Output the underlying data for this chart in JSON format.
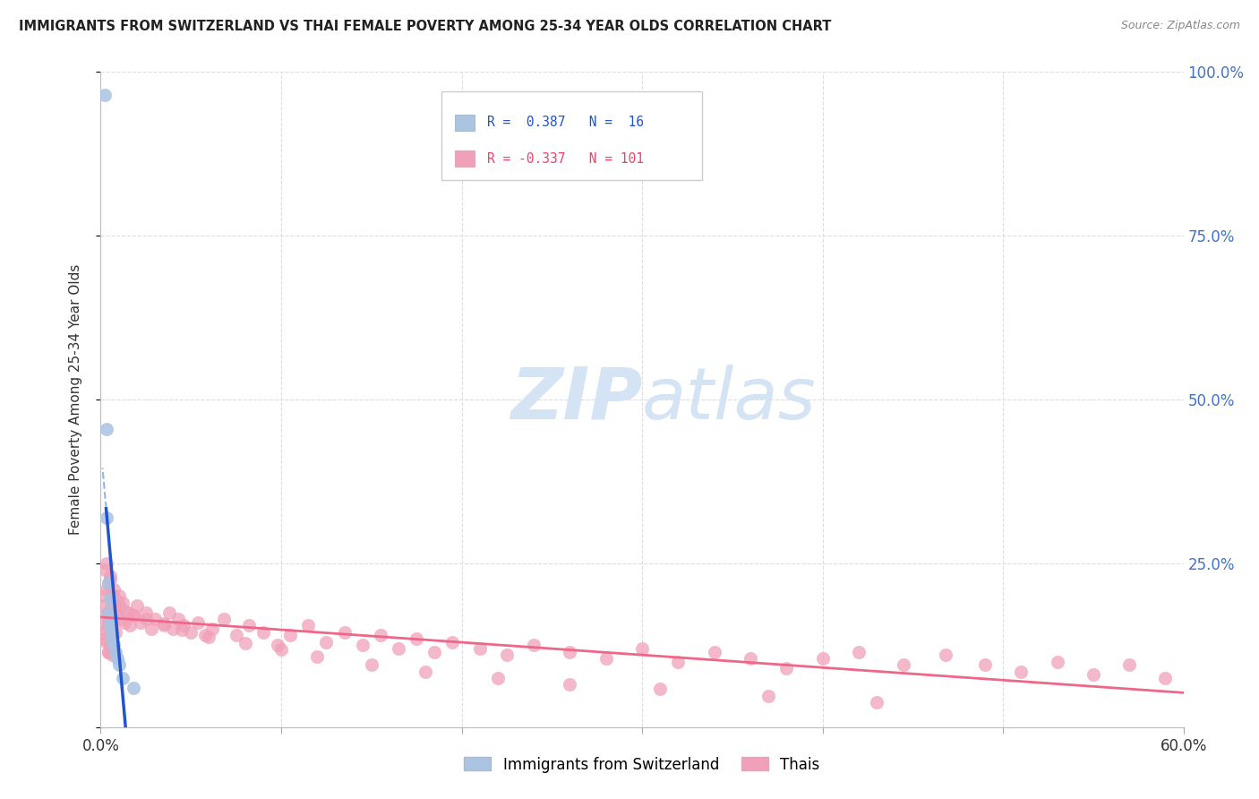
{
  "title": "IMMIGRANTS FROM SWITZERLAND VS THAI FEMALE POVERTY AMONG 25-34 YEAR OLDS CORRELATION CHART",
  "source": "Source: ZipAtlas.com",
  "ylabel": "Female Poverty Among 25-34 Year Olds",
  "xlim": [
    0.0,
    0.6
  ],
  "ylim": [
    0.0,
    1.0
  ],
  "xticks": [
    0.0,
    0.1,
    0.2,
    0.3,
    0.4,
    0.5,
    0.6
  ],
  "yticks": [
    0.0,
    0.25,
    0.5,
    0.75,
    1.0
  ],
  "xticklabels": [
    "0.0%",
    "",
    "",
    "",
    "",
    "",
    "60.0%"
  ],
  "yticklabels_right": [
    "",
    "25.0%",
    "50.0%",
    "75.0%",
    "100.0%"
  ],
  "swiss_color": "#aac4e2",
  "swiss_edge_color": "#aac4e2",
  "swiss_line_color": "#2255cc",
  "swiss_dash_color": "#6699dd",
  "thai_color": "#f0a0b8",
  "thai_edge_color": "#f0a0b8",
  "thai_line_color": "#ee6688",
  "watermark_color": "#d5e4f5",
  "grid_color": "#dddddd",
  "swiss_x": [
    0.002,
    0.003,
    0.003,
    0.004,
    0.004,
    0.005,
    0.005,
    0.005,
    0.006,
    0.006,
    0.007,
    0.008,
    0.009,
    0.01,
    0.012,
    0.018
  ],
  "swiss_y": [
    0.965,
    0.455,
    0.32,
    0.22,
    0.175,
    0.195,
    0.165,
    0.155,
    0.145,
    0.135,
    0.125,
    0.115,
    0.105,
    0.095,
    0.075,
    0.06
  ],
  "thai_x": [
    0.001,
    0.001,
    0.002,
    0.002,
    0.003,
    0.003,
    0.003,
    0.004,
    0.004,
    0.004,
    0.005,
    0.005,
    0.005,
    0.006,
    0.006,
    0.006,
    0.007,
    0.007,
    0.008,
    0.008,
    0.009,
    0.01,
    0.011,
    0.012,
    0.013,
    0.015,
    0.016,
    0.018,
    0.02,
    0.022,
    0.025,
    0.028,
    0.03,
    0.035,
    0.038,
    0.04,
    0.043,
    0.046,
    0.05,
    0.054,
    0.058,
    0.062,
    0.068,
    0.075,
    0.082,
    0.09,
    0.098,
    0.105,
    0.115,
    0.125,
    0.135,
    0.145,
    0.155,
    0.165,
    0.175,
    0.185,
    0.195,
    0.21,
    0.225,
    0.24,
    0.26,
    0.28,
    0.3,
    0.32,
    0.34,
    0.36,
    0.38,
    0.4,
    0.42,
    0.445,
    0.468,
    0.49,
    0.51,
    0.53,
    0.55,
    0.57,
    0.59,
    0.002,
    0.003,
    0.005,
    0.007,
    0.01,
    0.013,
    0.018,
    0.025,
    0.035,
    0.045,
    0.06,
    0.08,
    0.1,
    0.12,
    0.15,
    0.18,
    0.22,
    0.26,
    0.31,
    0.37,
    0.43,
    0.002,
    0.004,
    0.004
  ],
  "thai_y": [
    0.185,
    0.145,
    0.2,
    0.155,
    0.21,
    0.17,
    0.13,
    0.22,
    0.175,
    0.115,
    0.225,
    0.18,
    0.125,
    0.2,
    0.155,
    0.11,
    0.21,
    0.165,
    0.195,
    0.145,
    0.18,
    0.2,
    0.165,
    0.19,
    0.16,
    0.175,
    0.155,
    0.17,
    0.185,
    0.16,
    0.175,
    0.15,
    0.165,
    0.155,
    0.175,
    0.15,
    0.165,
    0.155,
    0.145,
    0.16,
    0.14,
    0.15,
    0.165,
    0.14,
    0.155,
    0.145,
    0.125,
    0.14,
    0.155,
    0.13,
    0.145,
    0.125,
    0.14,
    0.12,
    0.135,
    0.115,
    0.13,
    0.12,
    0.11,
    0.125,
    0.115,
    0.105,
    0.12,
    0.1,
    0.115,
    0.105,
    0.09,
    0.105,
    0.115,
    0.095,
    0.11,
    0.095,
    0.085,
    0.1,
    0.08,
    0.095,
    0.075,
    0.24,
    0.25,
    0.23,
    0.195,
    0.185,
    0.178,
    0.17,
    0.165,
    0.158,
    0.148,
    0.138,
    0.128,
    0.118,
    0.108,
    0.095,
    0.085,
    0.075,
    0.065,
    0.058,
    0.048,
    0.038,
    0.135,
    0.16,
    0.115
  ]
}
